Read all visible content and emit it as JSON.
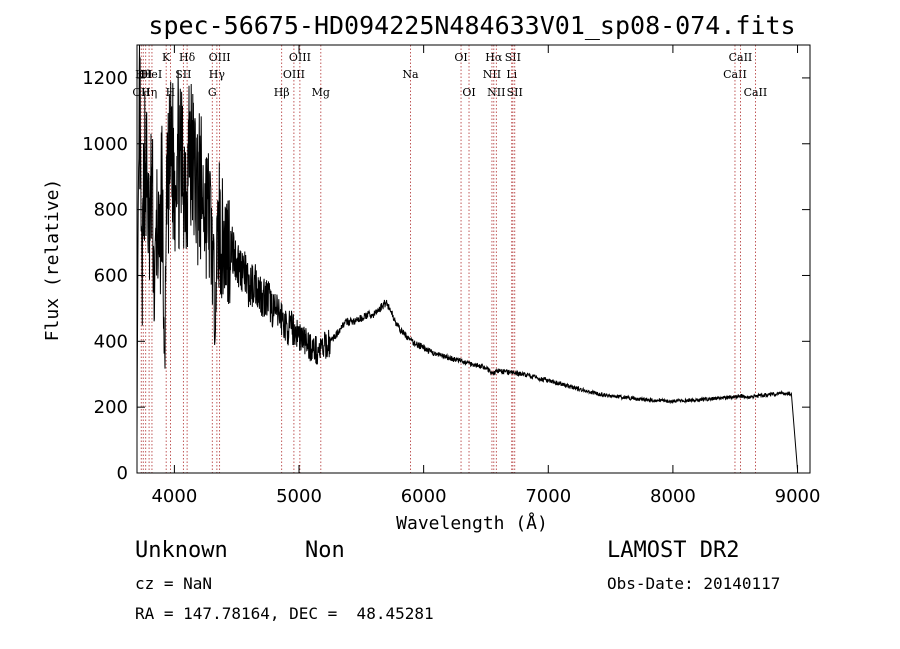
{
  "chart_data": {
    "type": "line",
    "title": "spec-56675-HD094225N484633V01_sp08-074.fits",
    "xlabel": "Wavelength (Å)",
    "ylabel": "Flux (relative)",
    "xlim": [
      3700,
      9100
    ],
    "ylim": [
      0,
      1300
    ],
    "xticks": [
      4000,
      5000,
      6000,
      7000,
      8000,
      9000
    ],
    "yticks": [
      0,
      200,
      400,
      600,
      800,
      1000,
      1200
    ],
    "grid": false,
    "legend": "none",
    "series": [
      {
        "x": [
          3700,
          3720,
          3740,
          3760,
          3780,
          3800,
          3820,
          3840,
          3860,
          3880,
          3900,
          3920,
          3940,
          3960,
          3980,
          4000,
          4020,
          4040,
          4060,
          4080,
          4100,
          4120,
          4140,
          4160,
          4180,
          4200,
          4240,
          4280,
          4300,
          4320,
          4340,
          4360,
          4380,
          4400,
          4450,
          4500,
          4550,
          4600,
          4650,
          4700,
          4750,
          4800,
          4850,
          4900,
          4950,
          5000,
          5050,
          5100,
          5150,
          5200,
          5250,
          5300,
          5350,
          5400,
          5450,
          5500,
          5550,
          5600,
          5650,
          5700,
          5750,
          5800,
          5850,
          5900,
          6000,
          6100,
          6200,
          6300,
          6400,
          6500,
          6560,
          6580,
          6600,
          6700,
          6800,
          6900,
          7000,
          7100,
          7200,
          7300,
          7400,
          7500,
          7600,
          7700,
          7800,
          7900,
          8000,
          8100,
          8200,
          8300,
          8400,
          8500,
          8540,
          8600,
          8700,
          8800,
          8900,
          8950,
          9000
        ],
        "y": [
          150,
          1150,
          520,
          980,
          880,
          700,
          900,
          520,
          780,
          620,
          920,
          300,
          820,
          900,
          1000,
          860,
          1050,
          900,
          940,
          920,
          880,
          1000,
          940,
          920,
          870,
          870,
          820,
          780,
          720,
          520,
          640,
          760,
          700,
          700,
          690,
          640,
          620,
          560,
          580,
          540,
          530,
          490,
          480,
          440,
          440,
          420,
          400,
          380,
          370,
          380,
          400,
          420,
          450,
          460,
          460,
          470,
          480,
          480,
          500,
          520,
          480,
          440,
          420,
          400,
          380,
          360,
          350,
          340,
          330,
          320,
          300,
          310,
          310,
          305,
          300,
          290,
          280,
          270,
          260,
          250,
          240,
          235,
          230,
          225,
          222,
          220,
          218,
          220,
          222,
          225,
          228,
          230,
          235,
          230,
          235,
          240,
          242,
          240,
          10
        ]
      }
    ],
    "annotations": [
      {
        "x": 3734,
        "row": 2,
        "label": "OII"
      },
      {
        "x": 3750,
        "row": 1,
        "label": "Hθ"
      },
      {
        "x": 3770,
        "row": 1,
        "label": "OI"
      },
      {
        "x": 3797,
        "row": 2,
        "label": "Hη"
      },
      {
        "x": 3820,
        "row": 1,
        "label": "HeI"
      },
      {
        "x": 3934,
        "row": 0,
        "label": "K"
      },
      {
        "x": 3968,
        "row": 2,
        "label": "H"
      },
      {
        "x": 4072,
        "row": 1,
        "label": "SII"
      },
      {
        "x": 4102,
        "row": 0,
        "label": "Hδ"
      },
      {
        "x": 4304,
        "row": 2,
        "label": "G"
      },
      {
        "x": 4341,
        "row": 1,
        "label": "Hγ"
      },
      {
        "x": 4363,
        "row": 0,
        "label": "OIII"
      },
      {
        "x": 4861,
        "row": 2,
        "label": "Hβ"
      },
      {
        "x": 4959,
        "row": 1,
        "label": "OIII"
      },
      {
        "x": 5007,
        "row": 0,
        "label": "OIII"
      },
      {
        "x": 5175,
        "row": 2,
        "label": "Mg"
      },
      {
        "x": 5894,
        "row": 1,
        "label": "Na"
      },
      {
        "x": 6300,
        "row": 0,
        "label": "OI"
      },
      {
        "x": 6364,
        "row": 2,
        "label": "OI"
      },
      {
        "x": 6548,
        "row": 1,
        "label": "NII"
      },
      {
        "x": 6563,
        "row": 0,
        "label": "Hα"
      },
      {
        "x": 6583,
        "row": 2,
        "label": "NII"
      },
      {
        "x": 6707,
        "row": 1,
        "label": "Li"
      },
      {
        "x": 6716,
        "row": 0,
        "label": "SII"
      },
      {
        "x": 6731,
        "row": 2,
        "label": "SII"
      },
      {
        "x": 8498,
        "row": 1,
        "label": "CaII"
      },
      {
        "x": 8542,
        "row": 0,
        "label": "CaII"
      },
      {
        "x": 8662,
        "row": 2,
        "label": "CaII"
      }
    ]
  },
  "info": {
    "object_class": "Unknown",
    "subclass": "Non",
    "survey": "LAMOST DR2",
    "cz": "cz = NaN",
    "obs_date": "Obs-Date: 20140117",
    "coords": "RA = 147.78164, DEC =  48.45281"
  }
}
